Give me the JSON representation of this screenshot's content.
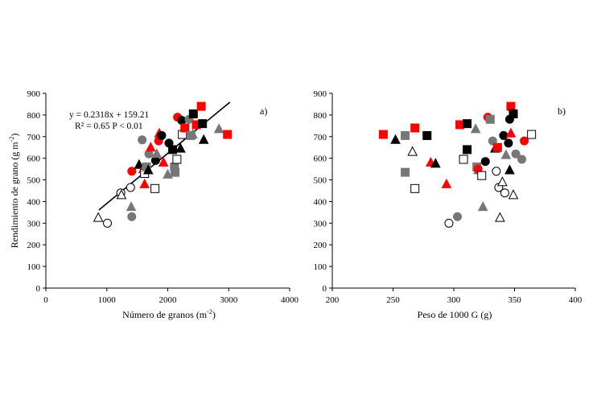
{
  "colors": {
    "black": "#000000",
    "red": "#ff0000",
    "gray": "#777777",
    "lightgray": "#999999",
    "white": "#ffffff"
  },
  "chart_data": [
    {
      "type": "scatter",
      "panel_label": "a)",
      "xlabel": "Número de granos (m",
      "xlabel_sup": "-2",
      "xlabel_end": ")",
      "ylabel": "Rendimiento de grano (g m",
      "ylabel_sup": "-2",
      "ylabel_end": ")",
      "xlim": [
        0,
        4000
      ],
      "ylim": [
        0,
        900
      ],
      "xticks": [
        0,
        1000,
        2000,
        3000,
        4000
      ],
      "yticks": [
        0,
        100,
        200,
        300,
        400,
        500,
        600,
        700,
        800,
        900
      ],
      "equation": "y = 0.2318x + 159.21",
      "r2_text": "R² = 0.65 P < 0.01",
      "trendline": {
        "x": [
          870,
          3020
        ],
        "y": [
          360.9,
          859.2
        ]
      },
      "points": [
        {
          "x": 860,
          "y": 325,
          "shape": "triangle",
          "color": "white"
        },
        {
          "x": 1010,
          "y": 300,
          "shape": "circle",
          "color": "white"
        },
        {
          "x": 1230,
          "y": 440,
          "shape": "circle",
          "color": "white"
        },
        {
          "x": 1240,
          "y": 430,
          "shape": "triangle",
          "color": "white"
        },
        {
          "x": 1390,
          "y": 465,
          "shape": "circle",
          "color": "white"
        },
        {
          "x": 1400,
          "y": 375,
          "shape": "triangle",
          "color": "gray"
        },
        {
          "x": 1410,
          "y": 330,
          "shape": "circle",
          "color": "gray"
        },
        {
          "x": 1410,
          "y": 540,
          "shape": "circle",
          "color": "red"
        },
        {
          "x": 1530,
          "y": 570,
          "shape": "triangle",
          "color": "black"
        },
        {
          "x": 1580,
          "y": 685,
          "shape": "circle",
          "color": "gray"
        },
        {
          "x": 1600,
          "y": 550,
          "shape": "triangle",
          "color": "red"
        },
        {
          "x": 1620,
          "y": 530,
          "shape": "square",
          "color": "white"
        },
        {
          "x": 1620,
          "y": 480,
          "shape": "triangle",
          "color": "red"
        },
        {
          "x": 1650,
          "y": 560,
          "shape": "square",
          "color": "gray"
        },
        {
          "x": 1680,
          "y": 545,
          "shape": "triangle",
          "color": "black"
        },
        {
          "x": 1690,
          "y": 620,
          "shape": "circle",
          "color": "gray"
        },
        {
          "x": 1720,
          "y": 650,
          "shape": "triangle",
          "color": "red"
        },
        {
          "x": 1790,
          "y": 460,
          "shape": "square",
          "color": "white"
        },
        {
          "x": 1800,
          "y": 590,
          "shape": "circle",
          "color": "black"
        },
        {
          "x": 1820,
          "y": 620,
          "shape": "triangle",
          "color": "gray"
        },
        {
          "x": 1850,
          "y": 680,
          "shape": "circle",
          "color": "red"
        },
        {
          "x": 1860,
          "y": 715,
          "shape": "triangle",
          "color": "red"
        },
        {
          "x": 1900,
          "y": 705,
          "shape": "circle",
          "color": "black"
        },
        {
          "x": 1930,
          "y": 580,
          "shape": "triangle",
          "color": "red"
        },
        {
          "x": 2000,
          "y": 525,
          "shape": "triangle",
          "color": "gray"
        },
        {
          "x": 2020,
          "y": 670,
          "shape": "circle",
          "color": "black"
        },
        {
          "x": 2080,
          "y": 640,
          "shape": "square",
          "color": "black"
        },
        {
          "x": 2110,
          "y": 560,
          "shape": "square",
          "color": "gray"
        },
        {
          "x": 2120,
          "y": 535,
          "shape": "square",
          "color": "gray"
        },
        {
          "x": 2150,
          "y": 595,
          "shape": "square",
          "color": "white"
        },
        {
          "x": 2160,
          "y": 790,
          "shape": "circle",
          "color": "red"
        },
        {
          "x": 2210,
          "y": 645,
          "shape": "triangle",
          "color": "black"
        },
        {
          "x": 2230,
          "y": 775,
          "shape": "circle",
          "color": "black"
        },
        {
          "x": 2240,
          "y": 710,
          "shape": "square",
          "color": "white"
        },
        {
          "x": 2280,
          "y": 740,
          "shape": "square",
          "color": "red"
        },
        {
          "x": 2350,
          "y": 780,
          "shape": "circle",
          "color": "gray"
        },
        {
          "x": 2380,
          "y": 705,
          "shape": "square",
          "color": "gray"
        },
        {
          "x": 2410,
          "y": 710,
          "shape": "triangle",
          "color": "gray"
        },
        {
          "x": 2420,
          "y": 805,
          "shape": "square",
          "color": "black"
        },
        {
          "x": 2470,
          "y": 755,
          "shape": "square",
          "color": "red"
        },
        {
          "x": 2550,
          "y": 840,
          "shape": "square",
          "color": "red"
        },
        {
          "x": 2570,
          "y": 760,
          "shape": "square",
          "color": "black"
        },
        {
          "x": 2590,
          "y": 685,
          "shape": "triangle",
          "color": "black"
        },
        {
          "x": 2840,
          "y": 735,
          "shape": "triangle",
          "color": "gray"
        },
        {
          "x": 2980,
          "y": 710,
          "shape": "square",
          "color": "red"
        }
      ]
    },
    {
      "type": "scatter",
      "panel_label": "b)",
      "xlabel": "Peso de 1000 G (g)",
      "ylabel": "",
      "xlim": [
        200,
        400
      ],
      "ylim": [
        0,
        900
      ],
      "xticks": [
        200,
        250,
        300,
        350,
        400
      ],
      "yticks": [
        0,
        100,
        200,
        300,
        400,
        500,
        600,
        700,
        800,
        900
      ],
      "points": [
        {
          "x": 242,
          "y": 710,
          "shape": "square",
          "color": "red"
        },
        {
          "x": 252,
          "y": 685,
          "shape": "triangle",
          "color": "black"
        },
        {
          "x": 260,
          "y": 535,
          "shape": "square",
          "color": "gray"
        },
        {
          "x": 260,
          "y": 705,
          "shape": "square",
          "color": "gray"
        },
        {
          "x": 266,
          "y": 630,
          "shape": "triangle",
          "color": "white"
        },
        {
          "x": 268,
          "y": 460,
          "shape": "square",
          "color": "white"
        },
        {
          "x": 268,
          "y": 740,
          "shape": "square",
          "color": "red"
        },
        {
          "x": 278,
          "y": 705,
          "shape": "square",
          "color": "black"
        },
        {
          "x": 281,
          "y": 580,
          "shape": "triangle",
          "color": "red"
        },
        {
          "x": 285,
          "y": 575,
          "shape": "triangle",
          "color": "black"
        },
        {
          "x": 294,
          "y": 480,
          "shape": "triangle",
          "color": "red"
        },
        {
          "x": 296,
          "y": 300,
          "shape": "circle",
          "color": "white"
        },
        {
          "x": 303,
          "y": 330,
          "shape": "circle",
          "color": "gray"
        },
        {
          "x": 305,
          "y": 755,
          "shape": "square",
          "color": "red"
        },
        {
          "x": 308,
          "y": 595,
          "shape": "square",
          "color": "white"
        },
        {
          "x": 311,
          "y": 760,
          "shape": "square",
          "color": "black"
        },
        {
          "x": 311,
          "y": 640,
          "shape": "square",
          "color": "black"
        },
        {
          "x": 318,
          "y": 735,
          "shape": "triangle",
          "color": "gray"
        },
        {
          "x": 319,
          "y": 560,
          "shape": "square",
          "color": "gray"
        },
        {
          "x": 320,
          "y": 545,
          "shape": "triangle",
          "color": "gray"
        },
        {
          "x": 320,
          "y": 550,
          "shape": "circle",
          "color": "red"
        },
        {
          "x": 323,
          "y": 520,
          "shape": "square",
          "color": "white"
        },
        {
          "x": 324,
          "y": 375,
          "shape": "triangle",
          "color": "gray"
        },
        {
          "x": 326,
          "y": 585,
          "shape": "circle",
          "color": "black"
        },
        {
          "x": 328,
          "y": 790,
          "shape": "circle",
          "color": "red"
        },
        {
          "x": 330,
          "y": 780,
          "shape": "square",
          "color": "gray"
        },
        {
          "x": 332,
          "y": 680,
          "shape": "circle",
          "color": "gray"
        },
        {
          "x": 334,
          "y": 645,
          "shape": "triangle",
          "color": "black"
        },
        {
          "x": 335,
          "y": 540,
          "shape": "circle",
          "color": "white"
        },
        {
          "x": 336,
          "y": 650,
          "shape": "square",
          "color": "red"
        },
        {
          "x": 337,
          "y": 465,
          "shape": "circle",
          "color": "white"
        },
        {
          "x": 338,
          "y": 325,
          "shape": "triangle",
          "color": "white"
        },
        {
          "x": 340,
          "y": 490,
          "shape": "triangle",
          "color": "white"
        },
        {
          "x": 341,
          "y": 705,
          "shape": "circle",
          "color": "black"
        },
        {
          "x": 342,
          "y": 440,
          "shape": "circle",
          "color": "white"
        },
        {
          "x": 343,
          "y": 615,
          "shape": "triangle",
          "color": "gray"
        },
        {
          "x": 345,
          "y": 670,
          "shape": "circle",
          "color": "black"
        },
        {
          "x": 346,
          "y": 545,
          "shape": "triangle",
          "color": "black"
        },
        {
          "x": 346,
          "y": 780,
          "shape": "circle",
          "color": "black"
        },
        {
          "x": 347,
          "y": 715,
          "shape": "triangle",
          "color": "red"
        },
        {
          "x": 347,
          "y": 840,
          "shape": "square",
          "color": "red"
        },
        {
          "x": 349,
          "y": 805,
          "shape": "square",
          "color": "black"
        },
        {
          "x": 349,
          "y": 430,
          "shape": "triangle",
          "color": "white"
        },
        {
          "x": 351,
          "y": 620,
          "shape": "circle",
          "color": "gray"
        },
        {
          "x": 356,
          "y": 595,
          "shape": "circle",
          "color": "gray"
        },
        {
          "x": 358,
          "y": 680,
          "shape": "circle",
          "color": "red"
        },
        {
          "x": 364,
          "y": 710,
          "shape": "square",
          "color": "white"
        }
      ]
    }
  ]
}
